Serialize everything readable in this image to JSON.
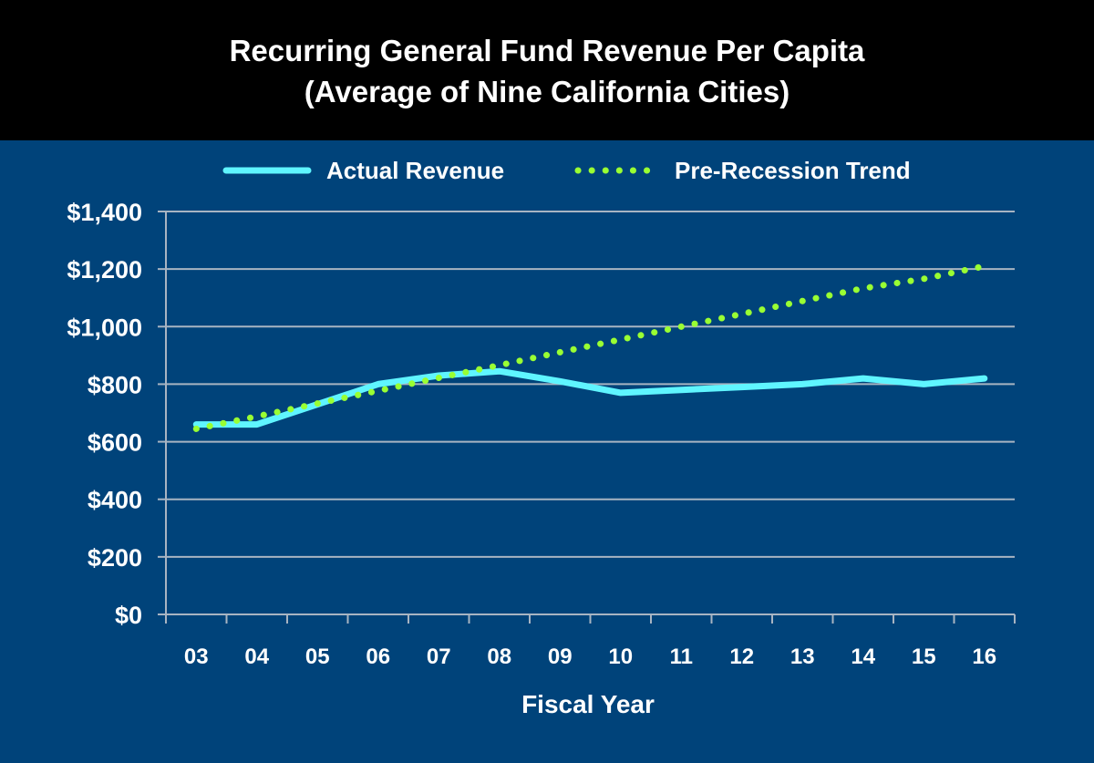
{
  "title": {
    "line1": "Recurring General Fund Revenue Per Capita",
    "line2": "(Average of Nine California Cities)"
  },
  "colors": {
    "background": "#00437a",
    "title_bar": "#000000",
    "actual": "#5ff5ff",
    "trend": "#99ff33",
    "grid": "#a8b4c2",
    "text": "#ffffff"
  },
  "chart_data": {
    "type": "line",
    "title": "Recurring General Fund Revenue Per Capita (Average of Nine California Cities)",
    "xlabel": "Fiscal Year",
    "ylabel": "",
    "categories": [
      "03",
      "04",
      "05",
      "06",
      "07",
      "08",
      "09",
      "10",
      "11",
      "12",
      "13",
      "14",
      "15",
      "16"
    ],
    "ylim": [
      0,
      1400
    ],
    "y_ticks": [
      0,
      200,
      400,
      600,
      800,
      1000,
      1200,
      1400
    ],
    "y_tick_labels": [
      "$0",
      "$200",
      "$400",
      "$600",
      "$800",
      "$1,000",
      "$1,200",
      "$1,400"
    ],
    "grid": true,
    "legend_position": "top",
    "series": [
      {
        "name": "Actual Revenue",
        "style": "solid",
        "color": "#5ff5ff",
        "values": [
          660,
          660,
          730,
          800,
          830,
          845,
          810,
          770,
          780,
          790,
          800,
          820,
          800,
          820
        ]
      },
      {
        "name": "Pre-Recession Trend",
        "style": "dotted",
        "color": "#99ff33",
        "values": [
          645,
          688,
          733,
          777,
          822,
          866,
          911,
          955,
          1000,
          1044,
          1089,
          1133,
          1166,
          1210
        ]
      }
    ]
  }
}
